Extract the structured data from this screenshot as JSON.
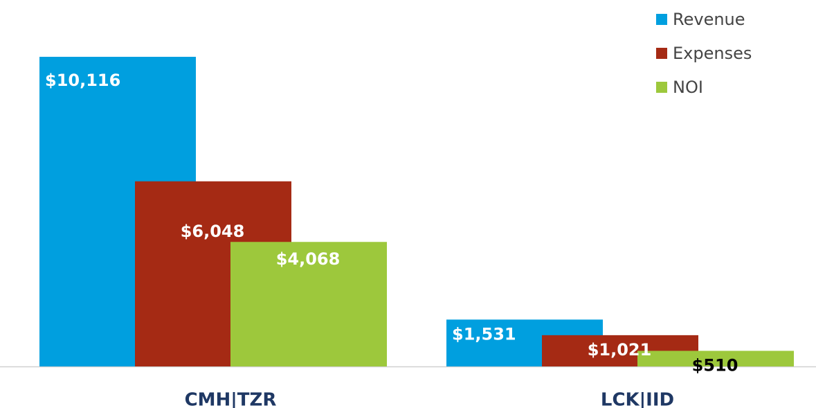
{
  "chart_data": {
    "type": "bar",
    "categories": [
      "CMH|TZR",
      "LCK|IID"
    ],
    "series": [
      {
        "name": "Revenue",
        "color": "#009fdf",
        "values": [
          10116,
          1531
        ],
        "value_labels": [
          "$10,116",
          "$1,531"
        ],
        "label_colors": [
          "#ffffff",
          "#ffffff"
        ]
      },
      {
        "name": "Expenses",
        "color": "#a52a14",
        "values": [
          6048,
          1021
        ],
        "value_labels": [
          "$6,048",
          "$1,021"
        ],
        "label_colors": [
          "#ffffff",
          "#ffffff"
        ]
      },
      {
        "name": "NOI",
        "color": "#9dc83c",
        "values": [
          4068,
          510
        ],
        "value_labels": [
          "$4,068",
          "$510"
        ],
        "label_colors": [
          "#ffffff",
          "#000000"
        ]
      }
    ],
    "legend": "top-right"
  }
}
